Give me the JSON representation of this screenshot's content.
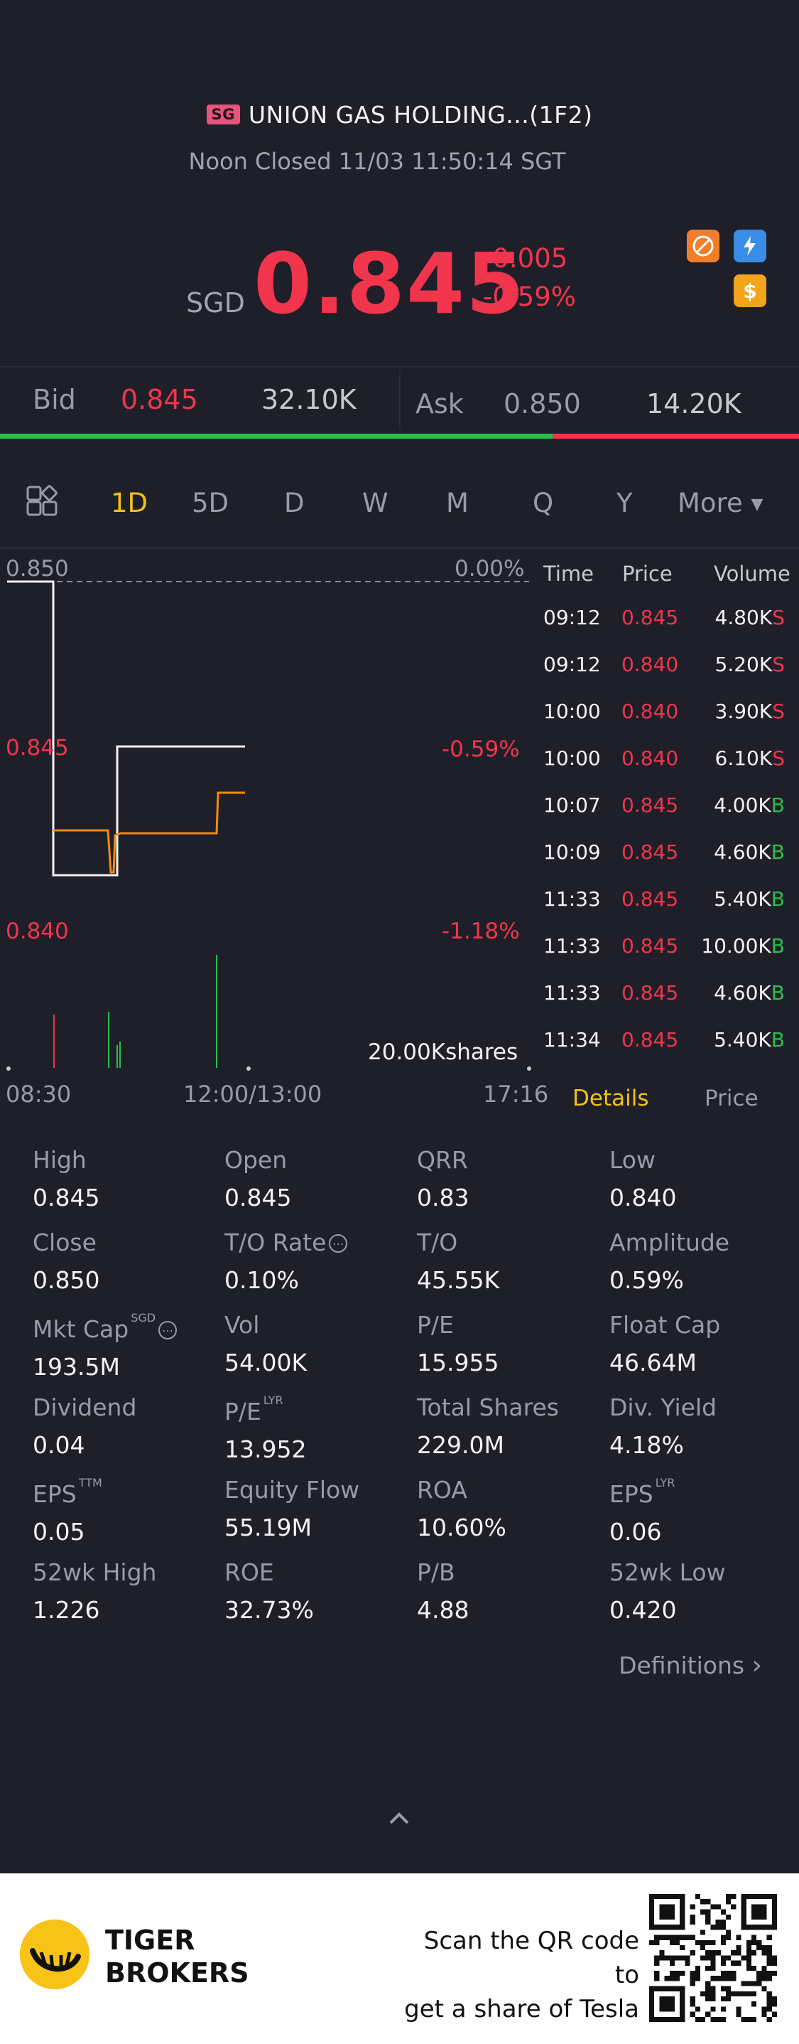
{
  "header": {
    "badge": "SG",
    "title": "UNION GAS HOLDING...(1F2)",
    "status": "Noon Closed 11/03 11:50:14 SGT"
  },
  "quote": {
    "currency": "SGD",
    "price": "0.845",
    "change": "-0.005",
    "change_pct": "-0.59%",
    "price_color": "#f0354c"
  },
  "bid_ask": {
    "bid_label": "Bid",
    "bid_price": "0.845",
    "bid_size": "32.10K",
    "ask_label": "Ask",
    "ask_price": "0.850",
    "ask_size": "14.20K",
    "bid_share": 0.692
  },
  "period_tabs": [
    "1D",
    "5D",
    "D",
    "W",
    "M",
    "Q",
    "Y",
    "More"
  ],
  "active_tab": "1D",
  "chart": {
    "y_top_price": "0.850",
    "y_top_pct": "0.00%",
    "y_mid_price": "0.845",
    "y_mid_pct": "-0.59%",
    "y_bot_price": "0.840",
    "y_bot_pct": "-1.18%",
    "volume_scale": "20.00Kshares",
    "x_start": "08:30",
    "x_mid": "12:00/13:00",
    "x_end": "17:16"
  },
  "trades": {
    "headers": {
      "time": "Time",
      "price": "Price",
      "volume": "Volume"
    },
    "rows": [
      {
        "time": "09:12",
        "price": "0.845",
        "volume": "4.80K",
        "side": "S"
      },
      {
        "time": "09:12",
        "price": "0.840",
        "volume": "5.20K",
        "side": "S"
      },
      {
        "time": "10:00",
        "price": "0.840",
        "volume": "3.90K",
        "side": "S"
      },
      {
        "time": "10:00",
        "price": "0.840",
        "volume": "6.10K",
        "side": "S"
      },
      {
        "time": "10:07",
        "price": "0.845",
        "volume": "4.00K",
        "side": "B"
      },
      {
        "time": "10:09",
        "price": "0.845",
        "volume": "4.60K",
        "side": "B"
      },
      {
        "time": "11:33",
        "price": "0.845",
        "volume": "5.40K",
        "side": "B"
      },
      {
        "time": "11:33",
        "price": "0.845",
        "volume": "10.00K",
        "side": "B"
      },
      {
        "time": "11:33",
        "price": "0.845",
        "volume": "4.60K",
        "side": "B"
      },
      {
        "time": "11:34",
        "price": "0.845",
        "volume": "5.40K",
        "side": "B"
      }
    ],
    "tab_details": "Details",
    "tab_price": "Price"
  },
  "stats": [
    {
      "label": "High",
      "value": "0.845"
    },
    {
      "label": "Open",
      "value": "0.845"
    },
    {
      "label": "QRR",
      "value": "0.83"
    },
    {
      "label": "Low",
      "value": "0.840"
    },
    {
      "label": "Close",
      "value": "0.850"
    },
    {
      "label": "T/O Rate",
      "value": "0.10%"
    },
    {
      "label": "T/O",
      "value": "45.55K"
    },
    {
      "label": "Amplitude",
      "value": "0.59%"
    },
    {
      "label": "Mkt Cap",
      "value": "193.5M",
      "sup": "SGD"
    },
    {
      "label": "Vol",
      "value": "54.00K"
    },
    {
      "label": "P/E",
      "value": "15.955"
    },
    {
      "label": "Float Cap",
      "value": "46.64M"
    },
    {
      "label": "Dividend",
      "value": "0.04"
    },
    {
      "label": "P/E",
      "value": "13.952",
      "sup": "LYR"
    },
    {
      "label": "Total Shares",
      "value": "229.0M"
    },
    {
      "label": "Div. Yield",
      "value": "4.18%"
    },
    {
      "label": "EPS",
      "value": "0.05",
      "sup": "TTM"
    },
    {
      "label": "Equity Flow",
      "value": "55.19M"
    },
    {
      "label": "ROA",
      "value": "10.60%"
    },
    {
      "label": "EPS",
      "value": "0.06",
      "sup": "LYR"
    },
    {
      "label": "52wk High",
      "value": "1.226"
    },
    {
      "label": "ROE",
      "value": "32.73%"
    },
    {
      "label": "P/B",
      "value": "4.88"
    },
    {
      "label": "52wk Low",
      "value": "0.420"
    }
  ],
  "definitions_link": "Definitions",
  "footer": {
    "brand_line1": "TIGER",
    "brand_line2": "BROKERS",
    "scan_line1": "Scan the QR code to",
    "scan_line2": "get a share of Tesla"
  }
}
